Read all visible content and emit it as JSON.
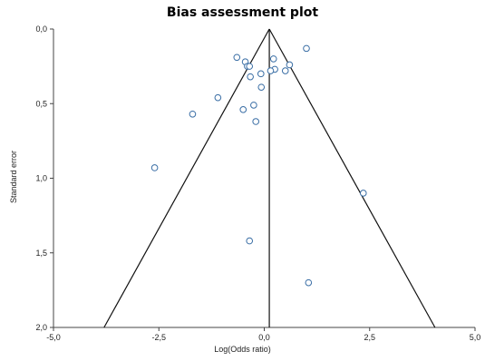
{
  "chart_data": {
    "type": "scatter",
    "title": "Bias assessment plot",
    "xlabel": "Log(Odds ratio)",
    "ylabel": "Standard error",
    "xlim": [
      -5.0,
      5.0
    ],
    "ylim": [
      0.0,
      2.0
    ],
    "y_inverted": true,
    "xticks": [
      -5.0,
      -2.5,
      0.0,
      2.5,
      5.0
    ],
    "xtick_labels": [
      "-5,0",
      "-2,5",
      "0,0",
      "2,5",
      "5,0"
    ],
    "yticks": [
      0.0,
      0.5,
      1.0,
      1.5,
      2.0
    ],
    "ytick_labels": [
      "0,0",
      "0,5",
      "1,0",
      "1,5",
      "2,0"
    ],
    "grid": false,
    "pooled_estimate": 0.12,
    "funnel_bottom": [
      -3.8,
      4.05
    ],
    "marker_color": "#3a6ea5",
    "points": [
      {
        "x": -0.65,
        "y": 0.19
      },
      {
        "x": -0.45,
        "y": 0.22
      },
      {
        "x": -0.4,
        "y": 0.25
      },
      {
        "x": -0.35,
        "y": 0.25
      },
      {
        "x": 1.0,
        "y": 0.13
      },
      {
        "x": 0.22,
        "y": 0.2
      },
      {
        "x": 0.6,
        "y": 0.24
      },
      {
        "x": 0.25,
        "y": 0.27
      },
      {
        "x": 0.15,
        "y": 0.28
      },
      {
        "x": 0.5,
        "y": 0.28
      },
      {
        "x": -0.08,
        "y": 0.3
      },
      {
        "x": -0.33,
        "y": 0.32
      },
      {
        "x": -0.07,
        "y": 0.39
      },
      {
        "x": -1.1,
        "y": 0.46
      },
      {
        "x": -0.25,
        "y": 0.51
      },
      {
        "x": -0.5,
        "y": 0.54
      },
      {
        "x": -1.7,
        "y": 0.57
      },
      {
        "x": -0.2,
        "y": 0.62
      },
      {
        "x": -2.6,
        "y": 0.93
      },
      {
        "x": 2.35,
        "y": 1.1
      },
      {
        "x": -0.35,
        "y": 1.42
      },
      {
        "x": 1.05,
        "y": 1.7
      }
    ]
  }
}
